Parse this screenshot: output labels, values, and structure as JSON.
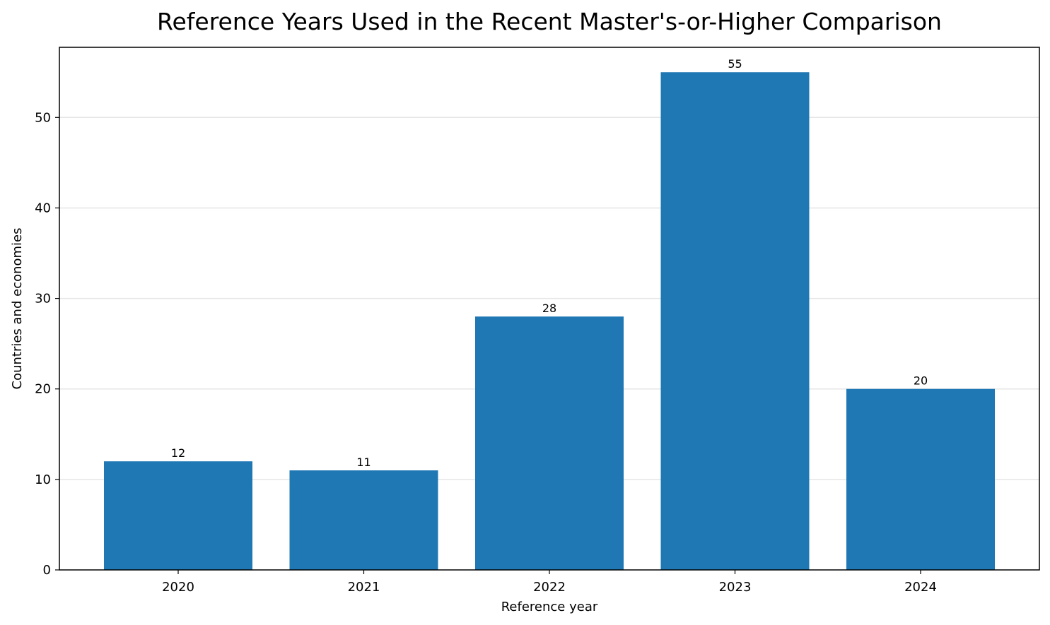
{
  "chart_data": {
    "type": "bar",
    "title": "Reference Years Used in the Recent Master's-or-Higher Comparison",
    "xlabel": "Reference year",
    "ylabel": "Countries and economies",
    "categories": [
      "2020",
      "2021",
      "2022",
      "2023",
      "2024"
    ],
    "values": [
      12,
      11,
      28,
      55,
      20
    ],
    "data_labels": [
      "12",
      "11",
      "28",
      "55",
      "20"
    ],
    "ylim": [
      0,
      57.75
    ],
    "yticks": [
      0,
      10,
      20,
      30,
      40,
      50
    ],
    "grid": "horizontal",
    "legend": "none",
    "bar_color": "#1f77b4"
  }
}
